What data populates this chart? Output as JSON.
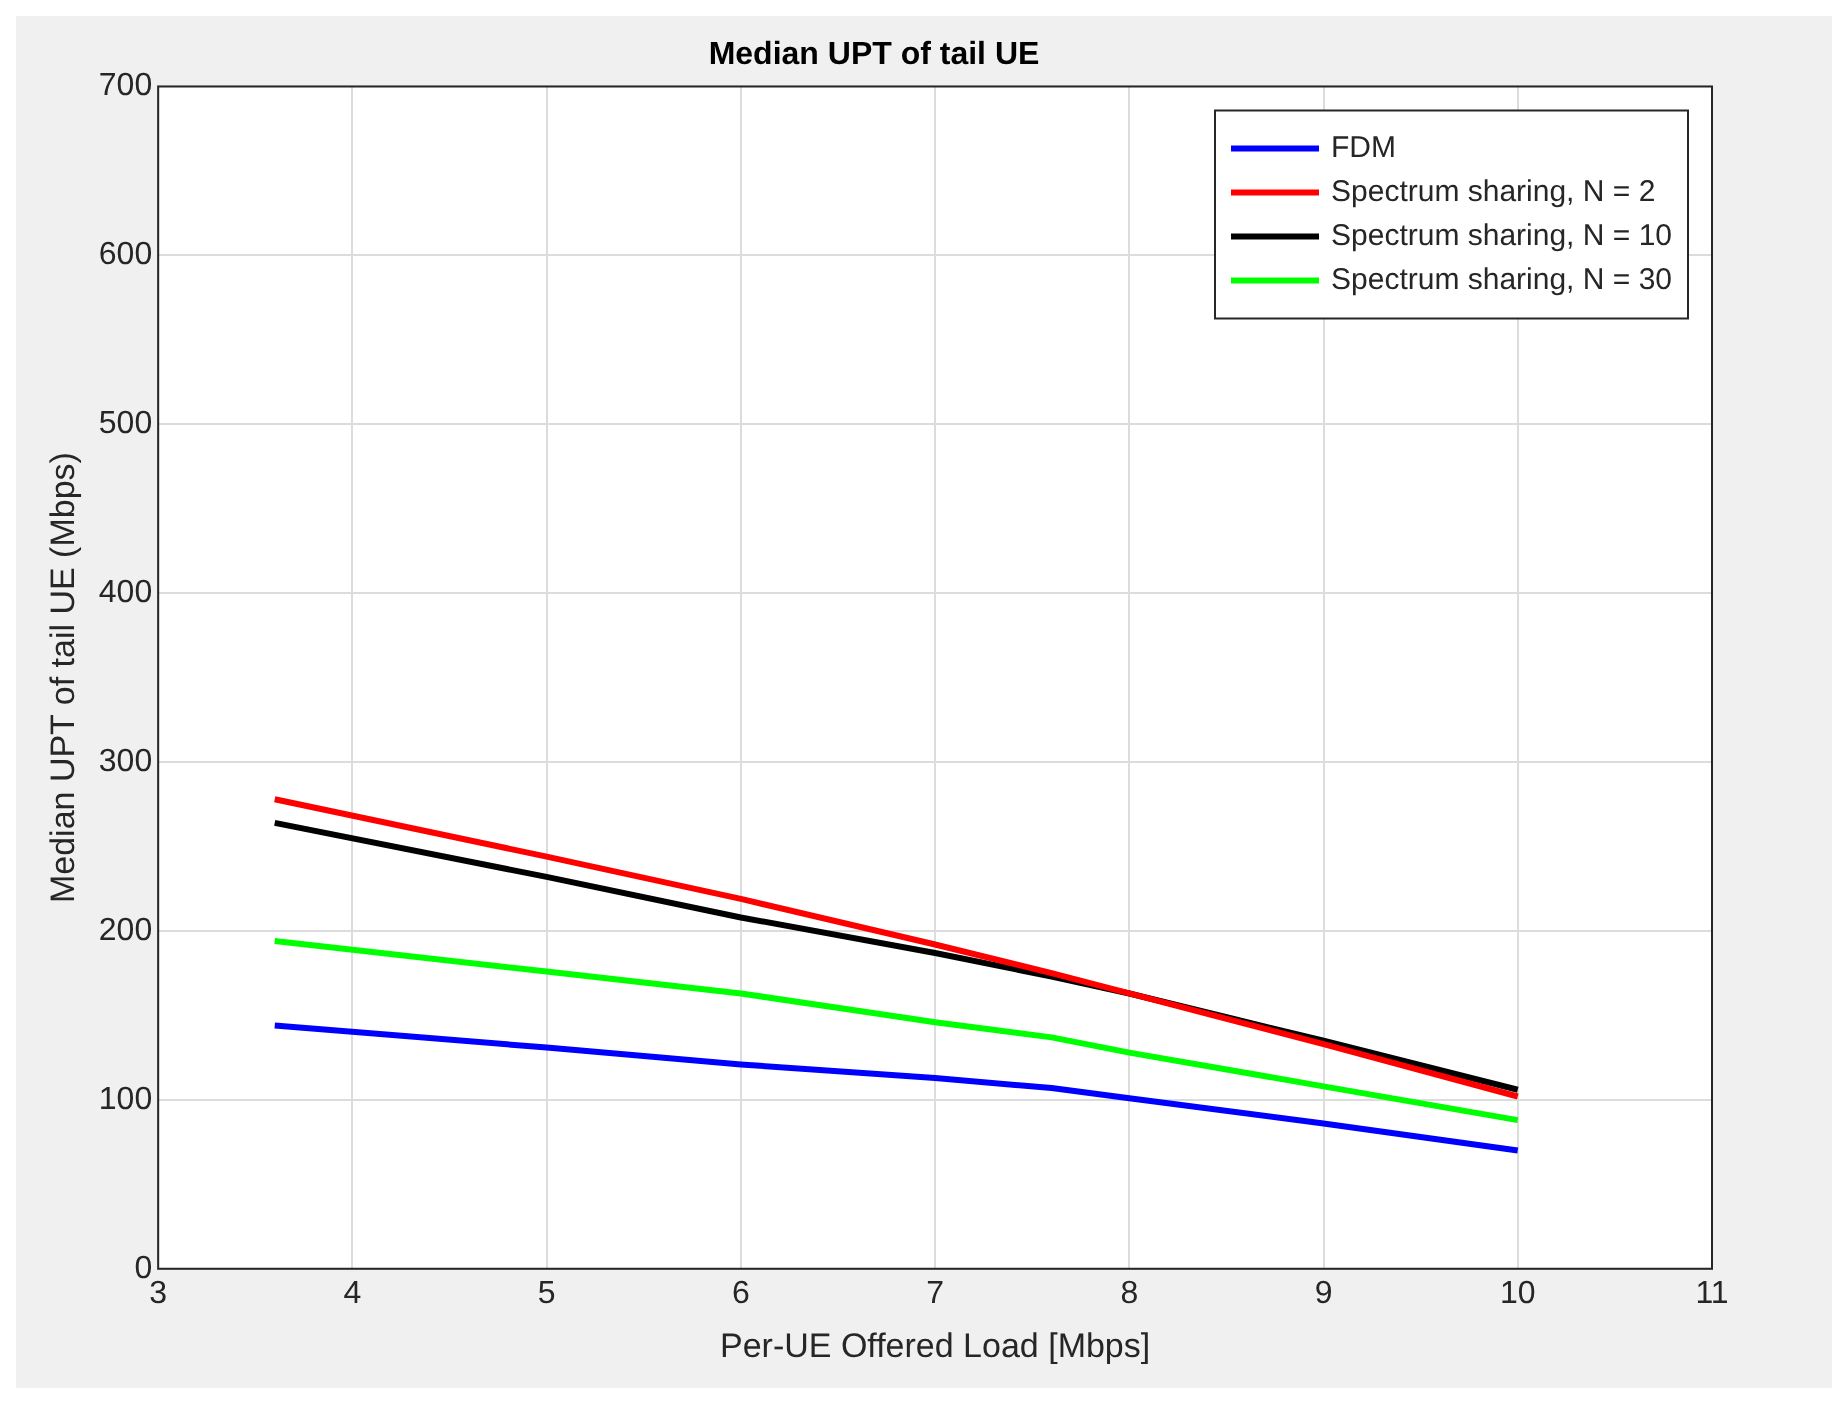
{
  "chart_data": {
    "type": "line",
    "title": "Median UPT of tail UE",
    "xlabel": "Per-UE Offered Load [Mbps]",
    "ylabel": "Median UPT of tail UE (Mbps)",
    "x": [
      3.6,
      5,
      6,
      7,
      7.6,
      8,
      9,
      10
    ],
    "series": [
      {
        "name": "FDM",
        "color": "#0000ff",
        "values": [
          144,
          131,
          121,
          113,
          107,
          101,
          86,
          70
        ]
      },
      {
        "name": "Spectrum sharing, N = 2",
        "color": "#ff0000",
        "values": [
          278,
          244,
          219,
          192,
          175,
          163,
          133,
          102
        ]
      },
      {
        "name": "Spectrum sharing, N = 10",
        "color": "#000000",
        "values": [
          264,
          232,
          208,
          187,
          173,
          163,
          135,
          106
        ]
      },
      {
        "name": "Spectrum sharing, N = 30",
        "color": "#00ff00",
        "values": [
          194,
          176,
          163,
          146,
          137,
          128,
          108,
          88
        ]
      }
    ],
    "xlim": [
      3,
      11
    ],
    "xticks": [
      3,
      4,
      5,
      6,
      7,
      8,
      9,
      10,
      11
    ],
    "ylim": [
      0,
      700
    ],
    "yticks": [
      0,
      100,
      200,
      300,
      400,
      500,
      600,
      700
    ],
    "grid": true,
    "legend": "top right",
    "marker": "none",
    "line_style": "solid"
  }
}
